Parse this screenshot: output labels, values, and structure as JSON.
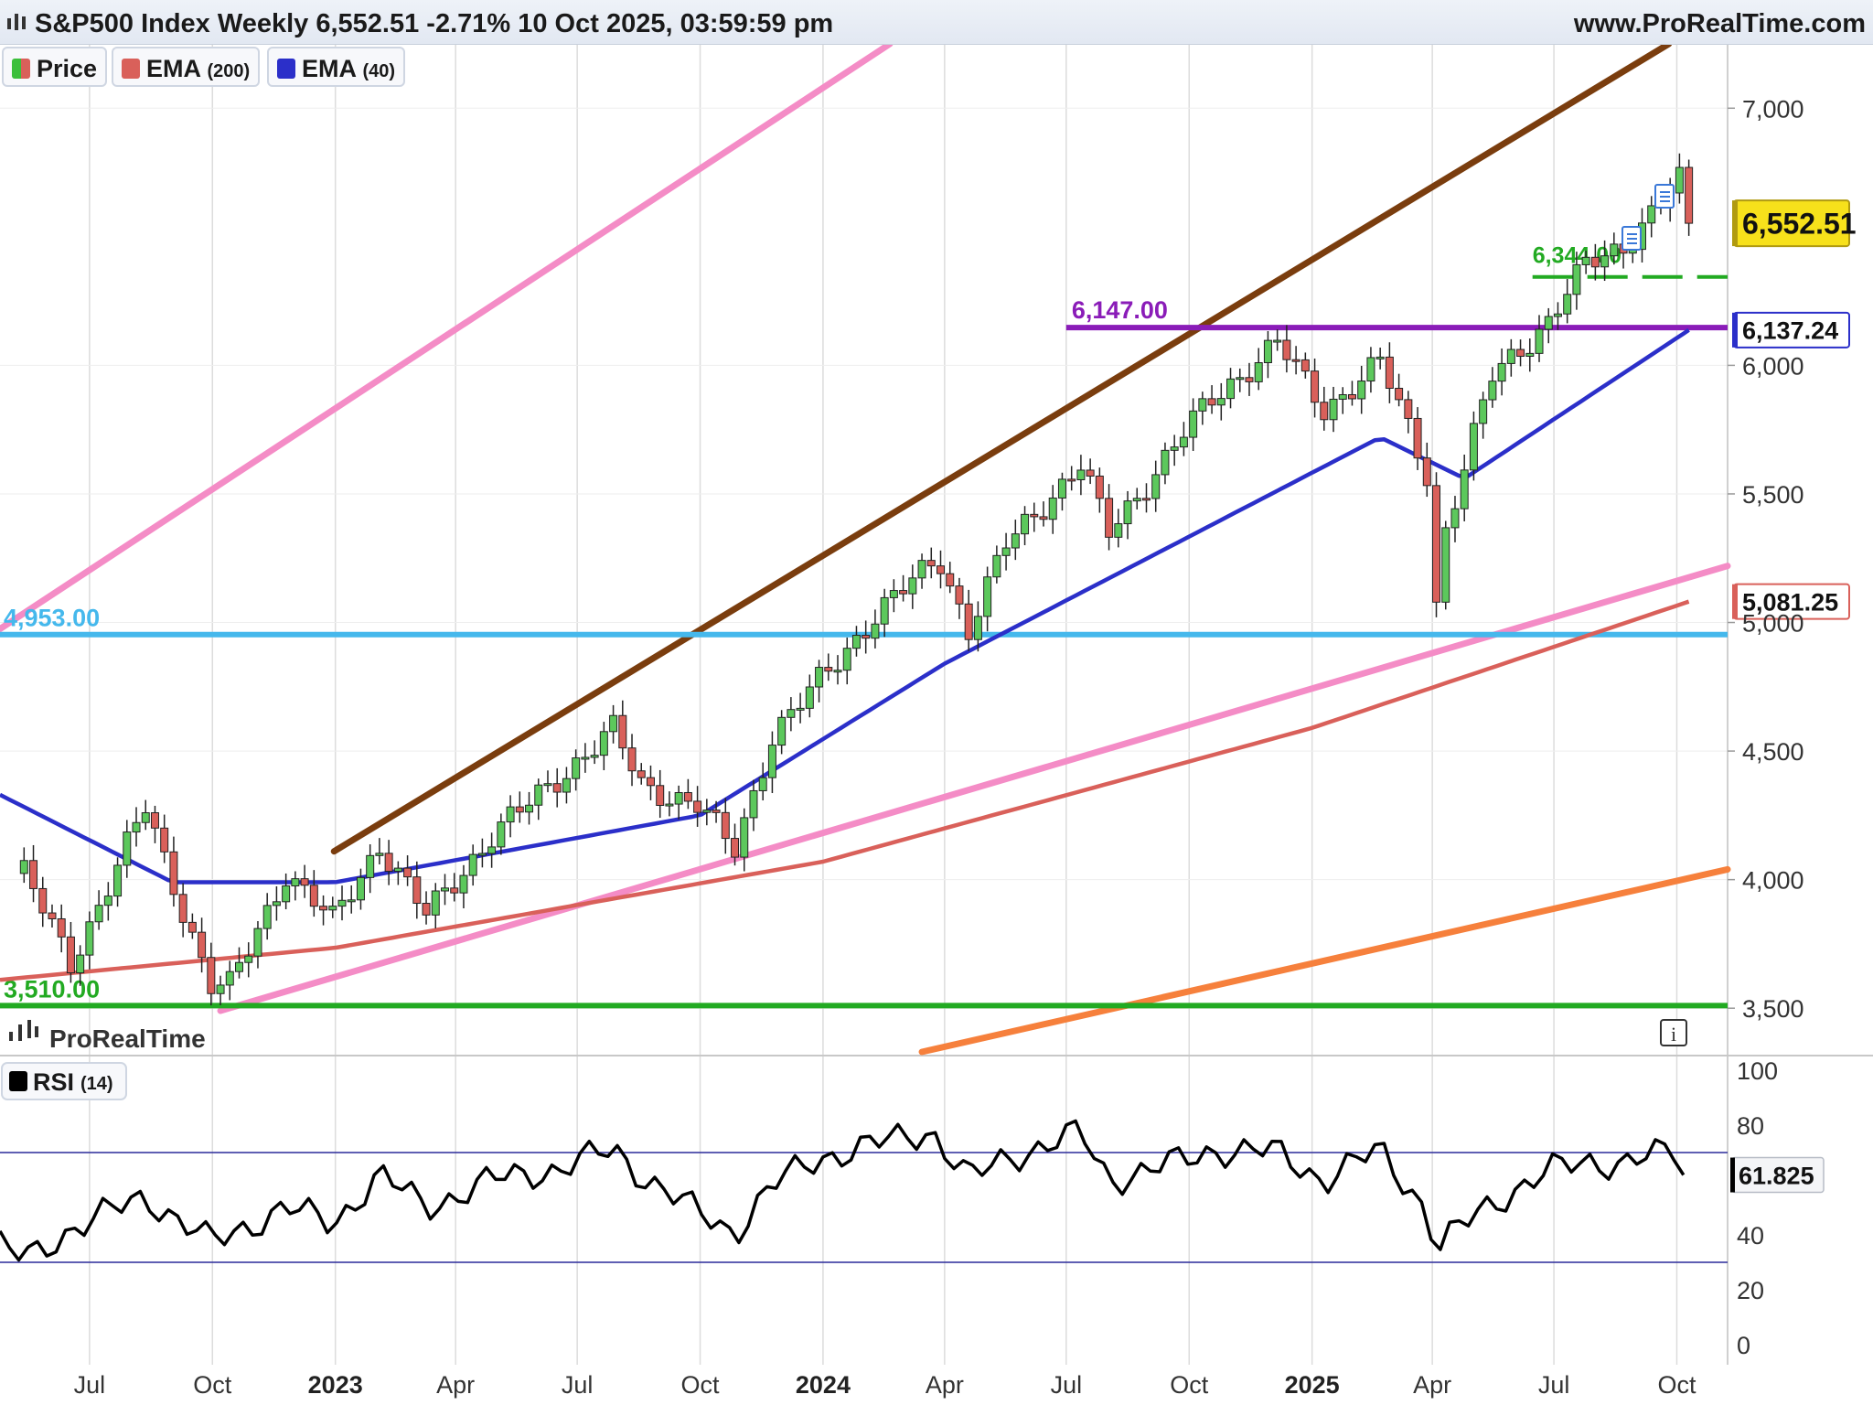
{
  "header": {
    "title": "S&P500 Index Weekly 6,552.51 -2.71% 10 Oct 2025, 03:59:59 pm",
    "site": "www.ProRealTime.com"
  },
  "legend": [
    {
      "label": "Price",
      "sub": "",
      "color": "#3bbf3b"
    },
    {
      "label": "EMA",
      "sub": "(200)",
      "color": "#d9605a"
    },
    {
      "label": "EMA",
      "sub": "(40)",
      "color": "#2b2fc9"
    }
  ],
  "watermark": "ProRealTime",
  "info_icon": "info-icon",
  "rsi_legend": {
    "label": "RSI",
    "sub": "(14)",
    "color": "#000000"
  },
  "colors": {
    "bull": "#5cc85c",
    "bear": "#d9605a",
    "ema200": "#d9605a",
    "ema40": "#2b2fc9",
    "pink": "#f48cc6",
    "brown": "#7a3d0e",
    "orange": "#f6803c",
    "purple": "#8a1cb8",
    "cyan": "#45b8ec",
    "green": "#22aa22"
  },
  "chart_data": [
    {
      "type": "candlestick",
      "title": "S&P500 Index Weekly",
      "timeframe": "weekly",
      "ylim": [
        3330,
        7250
      ],
      "y_ticks": [
        3500,
        4000,
        4500,
        5000,
        5500,
        6000,
        7000
      ],
      "y_tick_labels": [
        "3,500",
        "4,000",
        "4,500",
        "5,000",
        "5,500",
        "6,000",
        "7,000"
      ],
      "x_ticks": [
        "Jul",
        "Oct",
        "2023",
        "Apr",
        "Jul",
        "Oct",
        "2024",
        "Apr",
        "Jul",
        "Oct",
        "2025",
        "Apr",
        "Jul",
        "Oct"
      ],
      "x_tick_dates": [
        "2022-07-01",
        "2022-10-01",
        "2023-01-01",
        "2023-04-01",
        "2023-07-01",
        "2023-10-01",
        "2024-01-01",
        "2024-04-01",
        "2024-07-01",
        "2024-10-01",
        "2025-01-01",
        "2025-04-01",
        "2025-07-01",
        "2025-10-01"
      ],
      "x_range": [
        "2022-04-25",
        "2025-11-08"
      ],
      "grid": true,
      "closes": {
        "x": [
          "2022-05-13",
          "2022-06-17",
          "2022-07-01",
          "2022-08-12",
          "2022-09-30",
          "2022-10-14",
          "2022-11-25",
          "2022-12-30",
          "2023-02-03",
          "2023-03-10",
          "2023-04-28",
          "2023-07-28",
          "2023-08-18",
          "2023-09-29",
          "2023-10-27",
          "2023-11-24",
          "2023-12-29",
          "2024-02-09",
          "2024-03-28",
          "2024-04-19",
          "2024-05-17",
          "2024-07-12",
          "2024-08-02",
          "2024-09-27",
          "2024-10-18",
          "2024-12-06",
          "2025-01-10",
          "2025-02-21",
          "2025-03-28",
          "2025-04-04",
          "2025-04-11",
          "2025-05-16",
          "2025-06-27",
          "2025-07-25",
          "2025-08-22",
          "2025-10-03",
          "2025-10-10"
        ],
        "y": [
          4024,
          3675,
          3825,
          4280,
          3586,
          3583,
          4027,
          3840,
          4136,
          3862,
          4170,
          4582,
          4370,
          4288,
          4117,
          4559,
          4770,
          5027,
          5254,
          4968,
          5303,
          5615,
          5346,
          5738,
          5864,
          6090,
          5827,
          6013,
          5581,
          5074,
          5363,
          5958,
          6173,
          6389,
          6466,
          6716,
          6552.51
        ]
      },
      "ema_200": {
        "x": [
          "2022-04-25",
          "2023-01-01",
          "2024-01-01",
          "2025-01-01",
          "2025-10-10"
        ],
        "y": [
          3610,
          3735,
          4070,
          4590,
          5081.25
        ]
      },
      "ema_40": {
        "x": [
          "2022-04-25",
          "2022-09-01",
          "2023-01-01",
          "2023-10-01",
          "2024-04-01",
          "2025-02-21",
          "2025-04-25",
          "2025-10-10"
        ],
        "y": [
          4330,
          3990,
          3990,
          4250,
          4840,
          5720,
          5560,
          6137.24
        ]
      },
      "price_marker": 6552.51,
      "ema40_marker": 6137.24,
      "ema200_marker": 5081.25,
      "price_marker_label": "6,552.51",
      "ema40_marker_label": "6,137.24",
      "ema200_marker_label": "5,081.25",
      "horizontal_levels": [
        {
          "value": 6147.0,
          "label": "6,147.00"
        },
        {
          "value": 4953.0,
          "label": "4,953.00"
        },
        {
          "value": 3510.0,
          "label": "3,510.00"
        },
        {
          "value": 6344.0,
          "label": "6,344.00"
        }
      ],
      "trendlines": [
        {
          "name": "upper channel",
          "from": [
            "2022-04-25",
            4975
          ],
          "to": [
            "2024-02-20",
            7250
          ]
        },
        {
          "name": "rising resistance",
          "from": [
            "2022-12-31",
            4110
          ],
          "to": [
            "2025-09-25",
            7250
          ]
        },
        {
          "name": "rising support",
          "from": [
            "2022-10-07",
            3490
          ],
          "to": [
            "2025-11-08",
            5220
          ]
        },
        {
          "name": "lower channel",
          "from": [
            "2024-03-15",
            3330
          ],
          "to": [
            "2025-11-08",
            4040
          ]
        }
      ]
    },
    {
      "type": "line",
      "title": "RSI (14)",
      "ylim": [
        0,
        100
      ],
      "y_ticks": [
        0,
        20,
        40,
        60,
        80,
        100
      ],
      "reference_lines": [
        70,
        30
      ],
      "current_value": 61.825,
      "current_value_label": "61.825",
      "rsi": {
        "x": [
          "2022-04-25",
          "2022-05-13",
          "2022-06-17",
          "2022-08-12",
          "2022-09-30",
          "2022-11-25",
          "2022-12-30",
          "2023-02-03",
          "2023-03-10",
          "2023-04-28",
          "2023-06-16",
          "2023-07-28",
          "2023-08-18",
          "2023-09-29",
          "2023-10-27",
          "2023-11-24",
          "2023-12-29",
          "2024-03-22",
          "2024-04-19",
          "2024-05-17",
          "2024-07-12",
          "2024-08-02",
          "2024-09-27",
          "2024-10-18",
          "2024-12-06",
          "2025-01-10",
          "2025-02-21",
          "2025-03-28",
          "2025-04-04",
          "2025-04-25",
          "2025-05-16",
          "2025-06-27",
          "2025-07-25",
          "2025-08-22",
          "2025-10-03",
          "2025-10-10"
        ],
        "y": [
          36,
          31,
          42,
          54,
          37,
          50,
          44,
          62,
          50,
          60,
          64,
          71,
          62,
          48,
          41,
          58,
          68,
          78,
          60,
          68,
          77,
          60,
          67,
          71,
          70,
          60,
          71,
          49,
          34,
          44,
          52,
          63,
          67,
          66,
          71,
          61.825
        ]
      }
    }
  ]
}
